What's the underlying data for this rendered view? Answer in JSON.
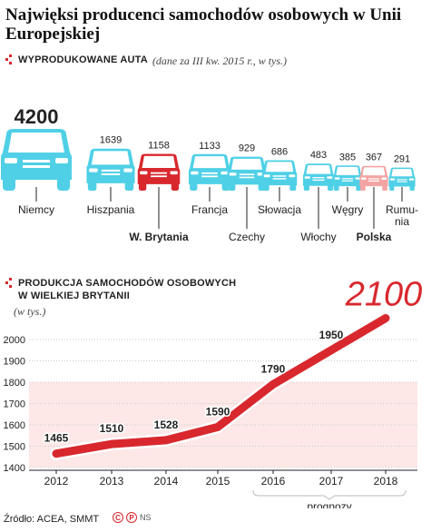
{
  "title": "Najwięksi producenci samochodów osobowych w Unii Europejskiej",
  "section1": {
    "heading": "Wyprodukowane auta",
    "note": "(dane za III kw. 2015 r., w tys.)"
  },
  "section2": {
    "heading_line1": "Produkcja samochodów osobowych",
    "heading_line2": "w Wielkiej Brytanii",
    "unit": "(w tys.)"
  },
  "source": "Źródło: ACEA, SMMT",
  "credit": {
    "author": "NS",
    "logo_letters": [
      "C",
      "P"
    ]
  },
  "colors": {
    "cyan": "#4fd0e6",
    "red": "#d8282e",
    "pink": "#f4a4a4",
    "band": "#fde7e7"
  },
  "icons": [
    "car-front-icon",
    "dot-grid-icon"
  ],
  "chart_data": [
    {
      "type": "bar",
      "title": "Wyprodukowane auta",
      "subtitle": "(dane za III kw. 2015 r., w tys.)",
      "categories": [
        "Niemcy",
        "Hiszpania",
        "W. Brytania",
        "Francja",
        "Czechy",
        "Słowacja",
        "Włochy",
        "Węgry",
        "Polska",
        "Rumunia"
      ],
      "category_display": [
        "Niemcy",
        "Hiszpania",
        "W. Brytania",
        "Francja",
        "Czechy",
        "Słowacja",
        "Włochy",
        "Węgry",
        "Polska",
        "Rumu-\nnia"
      ],
      "values": [
        4200,
        1639,
        1158,
        1133,
        929,
        686,
        483,
        385,
        367,
        291
      ],
      "highlight": {
        "W. Brytania": "#d8282e",
        "Polska": "#f4a4a4"
      },
      "bold_labels": [
        "W. Brytania",
        "Polska"
      ],
      "rendered_as": "car icons scaled by value"
    },
    {
      "type": "line",
      "title": "Produkcja samochodów osobowych w Wielkiej Brytanii",
      "ylabel": "(w tys.)",
      "x": [
        "2012",
        "2013",
        "2014",
        "2015",
        "2016",
        "2017",
        "2018"
      ],
      "values": [
        1465,
        1510,
        1528,
        1590,
        1790,
        1950,
        2100
      ],
      "ylim": [
        1400,
        2050
      ],
      "yticks": [
        1400,
        1500,
        1600,
        1700,
        1800,
        1900,
        2000
      ],
      "grid": true,
      "forecast_label": "prognozy",
      "forecast_from": "2016",
      "last_value_label": "2100"
    }
  ]
}
